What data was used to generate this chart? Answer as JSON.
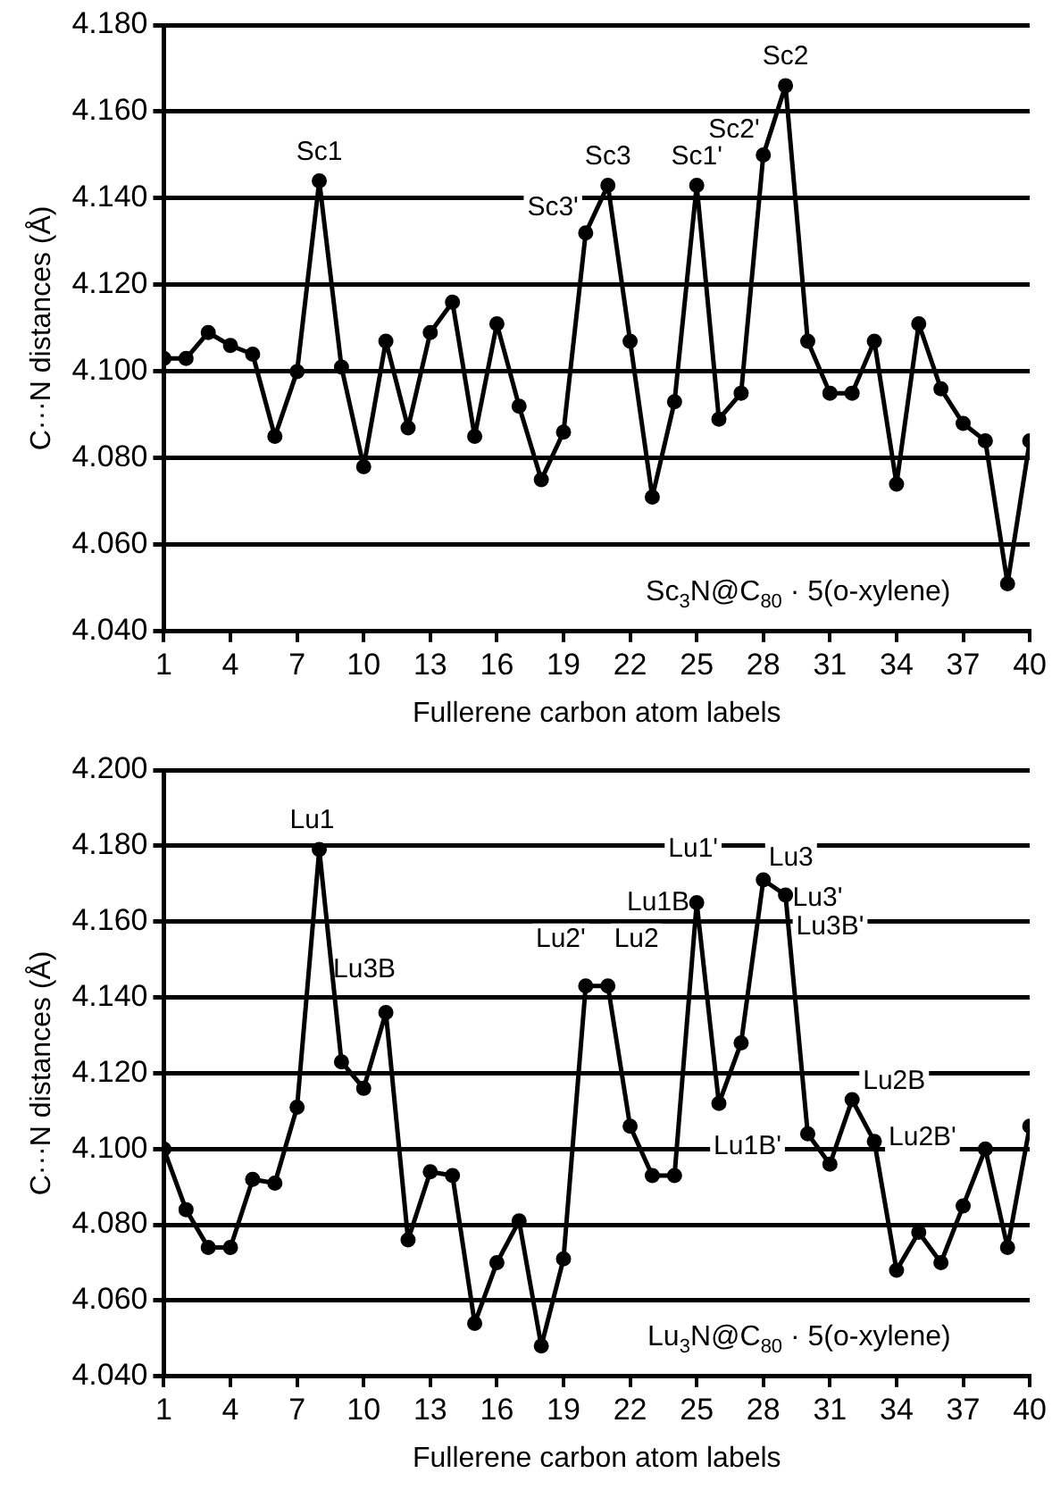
{
  "chart_data": [
    {
      "type": "line",
      "xlabel": "Fullerene carbon atom labels",
      "ylabel": "C···N distances (Å)",
      "x": [
        1,
        2,
        3,
        4,
        5,
        6,
        7,
        8,
        9,
        10,
        11,
        12,
        13,
        14,
        15,
        16,
        17,
        18,
        19,
        20,
        21,
        22,
        23,
        24,
        25,
        26,
        27,
        28,
        29,
        30,
        31,
        32,
        33,
        34,
        35,
        36,
        37,
        38,
        39,
        40
      ],
      "series": [
        {
          "color": "#000000",
          "values": [
            4.103,
            4.103,
            4.109,
            4.106,
            4.104,
            4.085,
            4.1,
            4.144,
            4.101,
            4.078,
            4.107,
            4.087,
            4.109,
            4.116,
            4.085,
            4.111,
            4.092,
            4.075,
            4.086,
            4.132,
            4.143,
            4.107,
            4.071,
            4.093,
            4.143,
            4.089,
            4.095,
            4.15,
            4.166,
            4.107,
            4.095,
            4.095,
            4.107,
            4.074,
            4.111,
            4.096,
            4.088,
            4.084,
            4.051,
            4.084
          ]
        }
      ],
      "xlim": [
        1,
        40
      ],
      "xticks": [
        1,
        4,
        7,
        10,
        13,
        16,
        19,
        22,
        25,
        28,
        31,
        34,
        37,
        40
      ],
      "ylim": [
        4.04,
        4.18
      ],
      "yticks": [
        {
          "value": 4.04,
          "label": "4.040"
        },
        {
          "value": 4.06,
          "label": "4.060"
        },
        {
          "value": 4.08,
          "label": "4.080"
        },
        {
          "value": 4.1,
          "label": "4.100"
        },
        {
          "value": 4.12,
          "label": "4.120"
        },
        {
          "value": 4.14,
          "label": "4.140"
        },
        {
          "value": 4.16,
          "label": "4.160"
        },
        {
          "value": 4.18,
          "label": "4.180"
        }
      ],
      "grid": "y",
      "legend": false,
      "marker": "circle",
      "line_style": "solid",
      "annotations": [
        {
          "text": "Sc1",
          "x": 8,
          "y": 4.144
        },
        {
          "text": "Sc3'",
          "x": 20,
          "y": 4.132
        },
        {
          "text": "Sc3",
          "x": 21,
          "y": 4.143
        },
        {
          "text": "Sc1'",
          "x": 25,
          "y": 4.143
        },
        {
          "text": "Sc2'",
          "x": 28,
          "y": 4.15
        },
        {
          "text": "Sc2",
          "x": 29,
          "y": 4.166
        },
        "Sc$_{3}$N@C$_{80}$ · 5(o-xylene)"
      ]
    },
    {
      "type": "line",
      "xlabel": "Fullerene carbon atom labels",
      "ylabel": "C···N distances (Å)",
      "x": [
        1,
        2,
        3,
        4,
        5,
        6,
        7,
        8,
        9,
        10,
        11,
        12,
        13,
        14,
        15,
        16,
        17,
        18,
        19,
        20,
        21,
        22,
        23,
        24,
        25,
        26,
        27,
        28,
        29,
        30,
        31,
        32,
        33,
        34,
        35,
        36,
        37,
        38,
        39,
        40
      ],
      "series": [
        {
          "color": "#000000",
          "values": [
            4.1,
            4.084,
            4.074,
            4.074,
            4.092,
            4.091,
            4.111,
            4.179,
            4.123,
            4.116,
            4.136,
            4.076,
            4.094,
            4.093,
            4.054,
            4.07,
            4.081,
            4.048,
            4.071,
            4.143,
            4.143,
            4.106,
            4.093,
            4.093,
            4.165,
            4.112,
            4.128,
            4.171,
            4.167,
            4.104,
            4.096,
            4.113,
            4.102,
            4.068,
            4.078,
            4.07,
            4.085,
            4.1,
            4.074,
            4.106
          ]
        }
      ],
      "xlim": [
        1,
        40
      ],
      "xticks": [
        1,
        4,
        7,
        10,
        13,
        16,
        19,
        22,
        25,
        28,
        31,
        34,
        37,
        40
      ],
      "ylim": [
        4.04,
        4.2
      ],
      "yticks": [
        {
          "value": 4.04,
          "label": "4.040"
        },
        {
          "value": 4.06,
          "label": "4.060"
        },
        {
          "value": 4.08,
          "label": "4.080"
        },
        {
          "value": 4.1,
          "label": "4.100"
        },
        {
          "value": 4.12,
          "label": "4.120"
        },
        {
          "value": 4.14,
          "label": "4.140"
        },
        {
          "value": 4.16,
          "label": "4.160"
        },
        {
          "value": 4.18,
          "label": "4.180"
        },
        {
          "value": 4.2,
          "label": "4.200"
        }
      ],
      "grid": "y",
      "legend": false,
      "marker": "circle",
      "line_style": "solid",
      "annotations": [
        {
          "text": "Lu1",
          "x": 8,
          "y": 4.179
        },
        {
          "text": "Lu3B",
          "x": 11,
          "y": 4.136
        },
        {
          "text": "Lu2'",
          "x": 20,
          "y": 4.143
        },
        {
          "text": "Lu2",
          "x": 21,
          "y": 4.143
        },
        {
          "text": "Lu1'",
          "x": 25,
          "y": 4.165
        },
        {
          "text": "Lu1B",
          "x": 25,
          "y": 4.165
        },
        {
          "text": "Lu3",
          "x": 28,
          "y": 4.171
        },
        {
          "text": "Lu3'",
          "x": 29,
          "y": 4.167
        },
        {
          "text": "Lu3B'",
          "x": 29,
          "y": 4.167
        },
        {
          "text": "Lu1B'",
          "x": 26,
          "y": 4.112
        },
        {
          "text": "Lu2B",
          "x": 32,
          "y": 4.113
        },
        {
          "text": "Lu2B'",
          "x": 33,
          "y": 4.102
        },
        "Lu$_{3}$N@C$_{80}$ · 5(o-xylene)"
      ]
    }
  ]
}
